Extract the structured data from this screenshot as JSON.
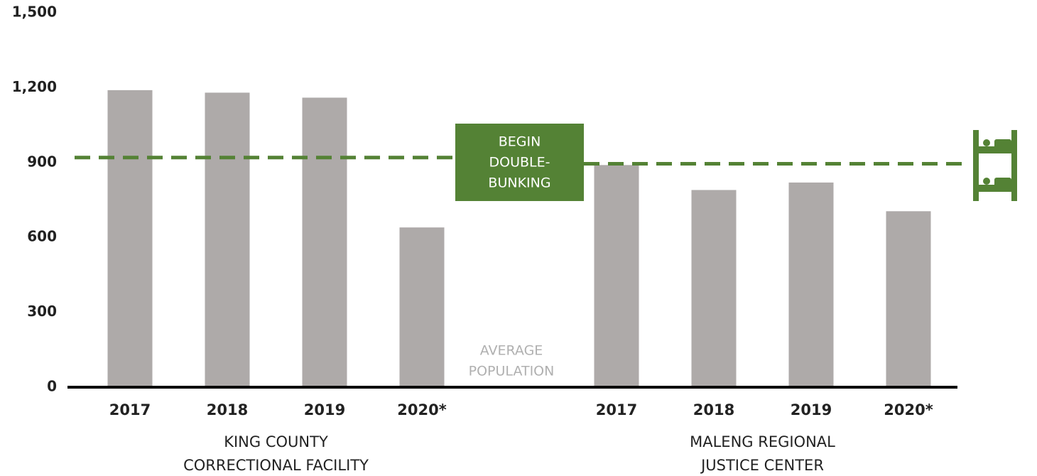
{
  "chart_data": {
    "type": "bar",
    "color": "#aeaaa9",
    "line_color": "#548235",
    "ylim": [
      0,
      1500
    ],
    "yticks": [
      0,
      300,
      600,
      900,
      {
        "value": 1200,
        "label": "1,200"
      },
      {
        "value": 1500,
        "label": "1,500"
      }
    ],
    "groups": [
      {
        "label_lines": [
          "KING COUNTY",
          "CORRECTIONAL FACILITY"
        ],
        "categories": [
          "2017",
          "2018",
          "2019",
          "2020*"
        ],
        "values": [
          1190,
          1180,
          1160,
          640
        ],
        "double_bunking": 920
      },
      {
        "label_lines": [
          "MALENG REGIONAL",
          "JUSTICE CENTER"
        ],
        "categories": [
          "2017",
          "2018",
          "2019",
          "2020*"
        ],
        "values": [
          890,
          790,
          820,
          705
        ],
        "double_bunking": 895
      }
    ],
    "box_lines": [
      "BEGIN",
      "DOUBLE-",
      "BUNKING"
    ],
    "note_lines": [
      "AVERAGE",
      "POPULATION"
    ]
  }
}
